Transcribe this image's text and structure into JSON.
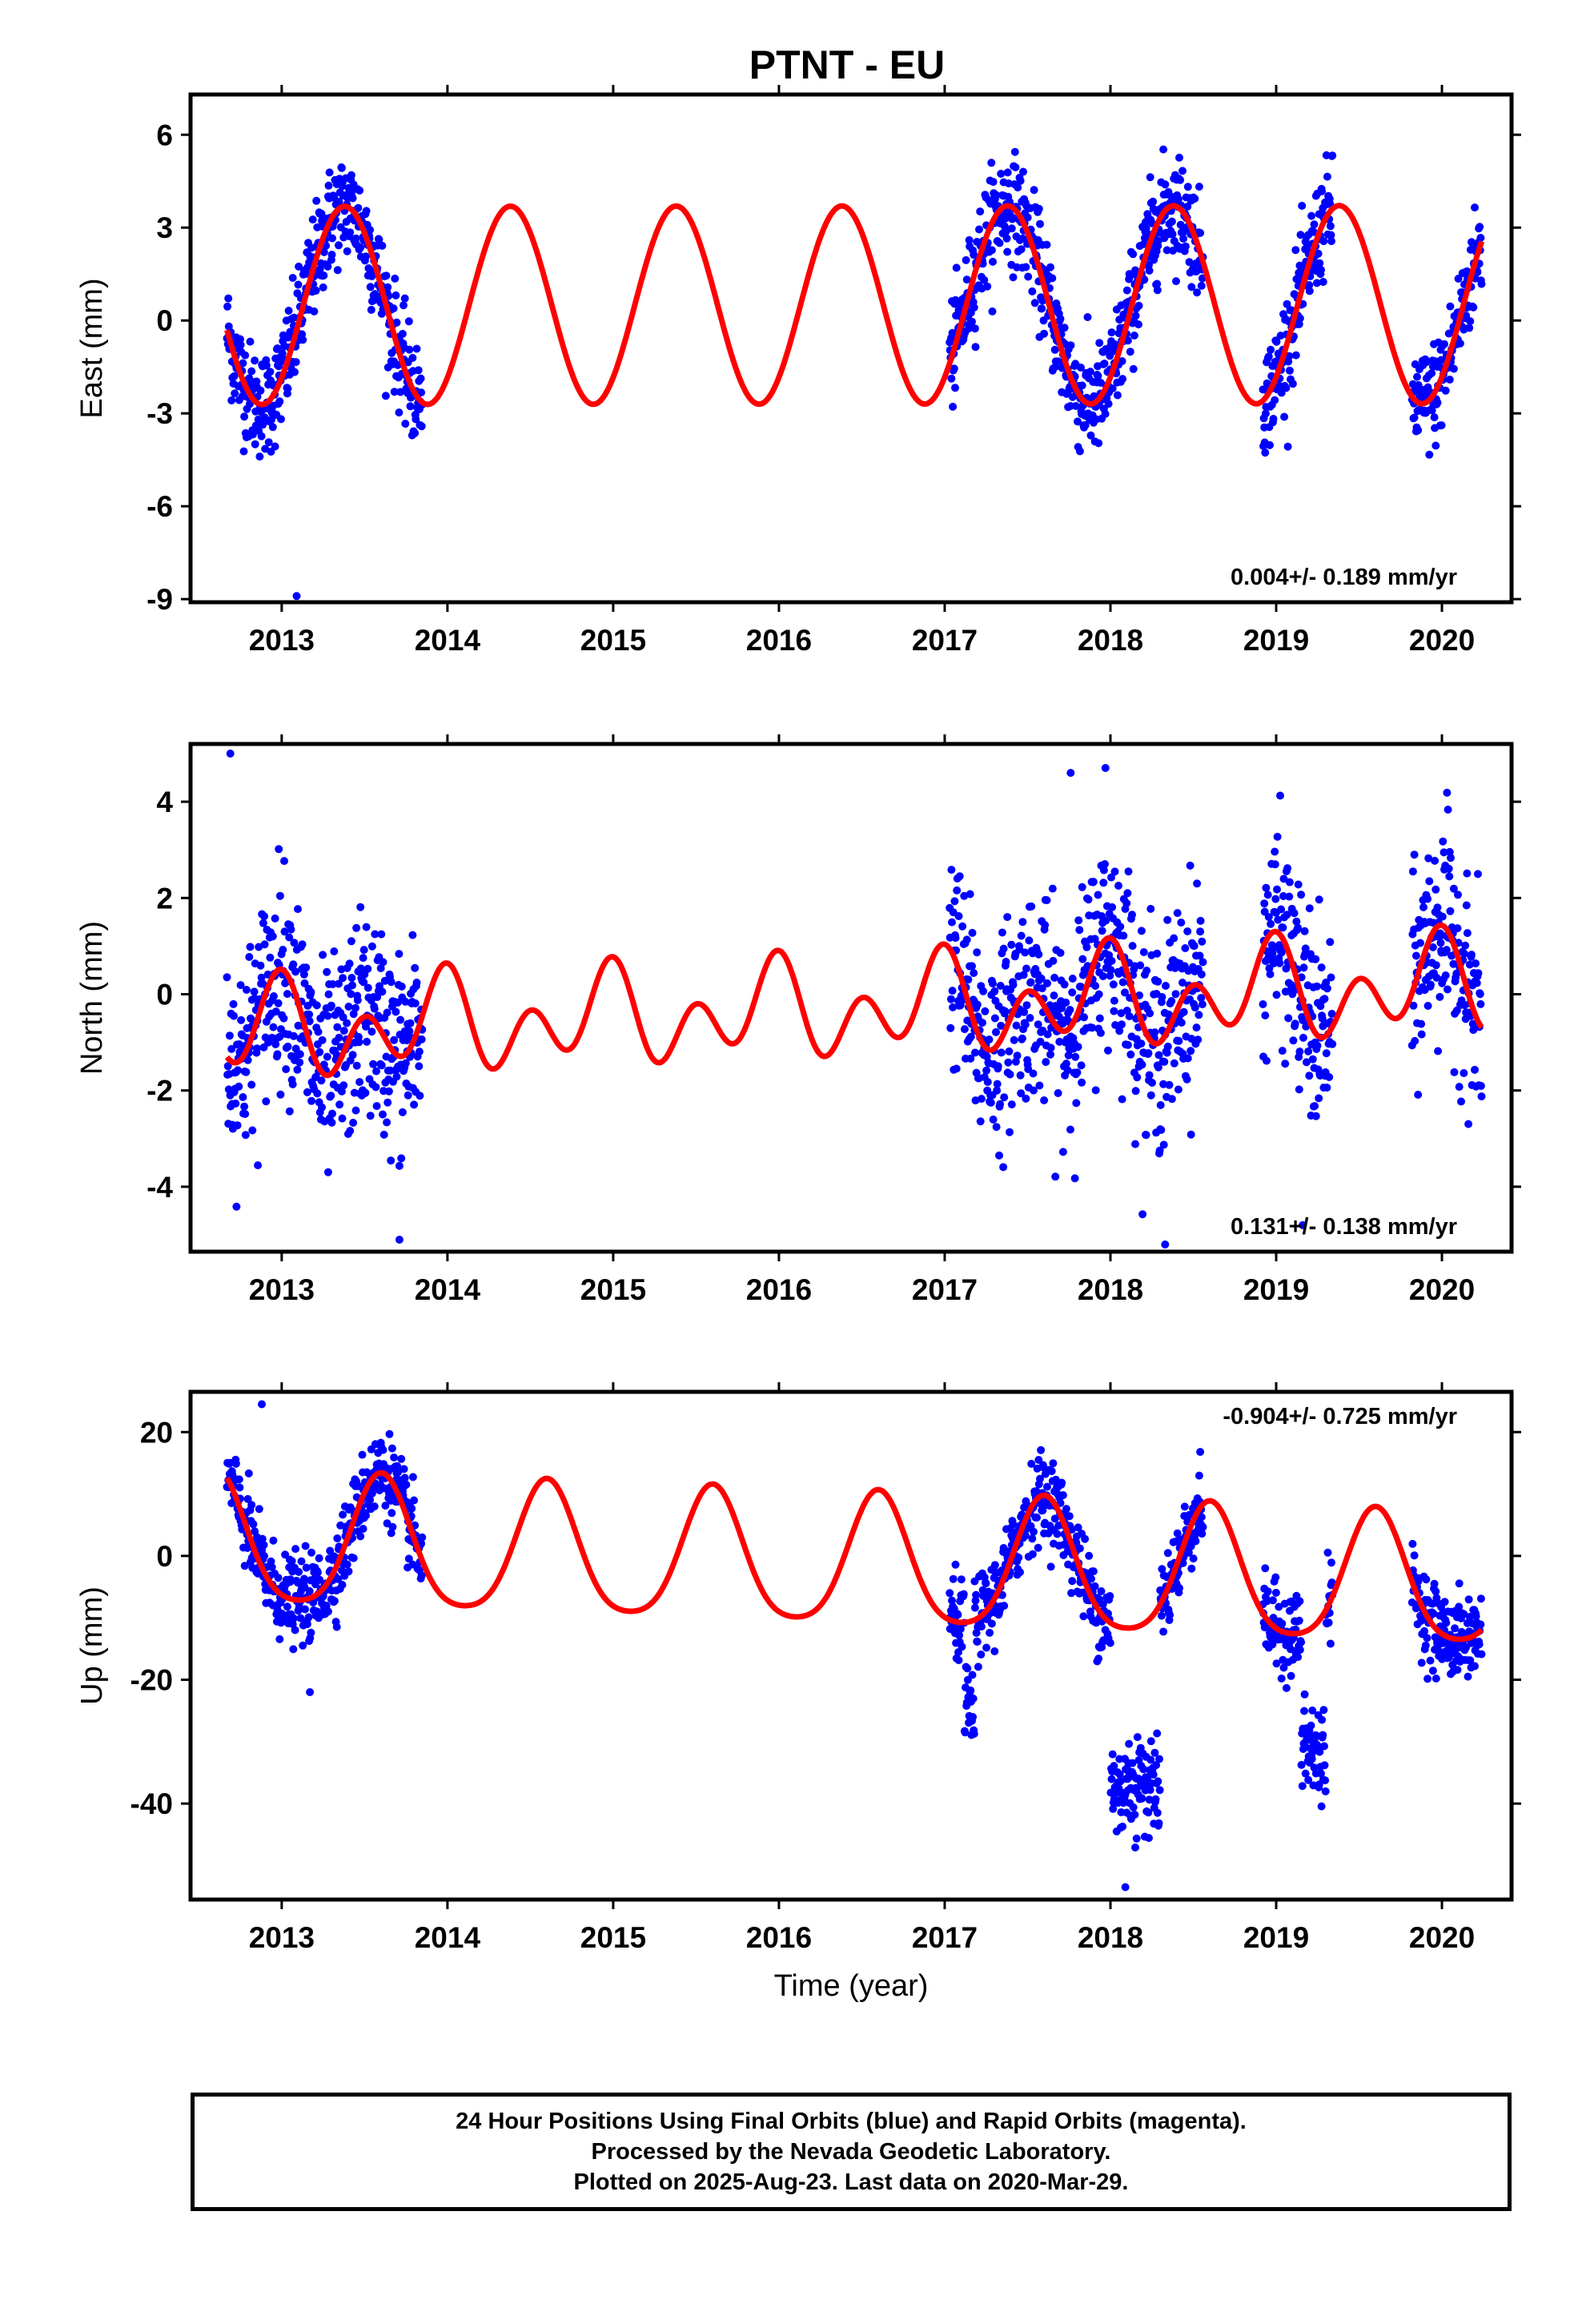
{
  "title": "PTNT - EU",
  "colors": {
    "final_orbits": "#0000ff",
    "model_fit": "#ff0000",
    "frame": "#000000"
  },
  "chart_data": [
    {
      "type": "scatter",
      "component": "east",
      "ylabel": "East (mm)",
      "xlabel": "",
      "xlim": [
        2012.45,
        2020.42
      ],
      "ylim": [
        -9.1,
        7.3
      ],
      "xticks": [
        2013,
        2014,
        2015,
        2016,
        2017,
        2018,
        2019,
        2020
      ],
      "xtick_labels": [
        "2013",
        "2014",
        "2015",
        "2016",
        "2017",
        "2018",
        "2019",
        "2020"
      ],
      "yticks": [
        -9,
        -6,
        -3,
        0,
        3,
        6
      ],
      "ytick_labels": [
        "-9",
        "-6",
        "-3",
        "0",
        "3",
        "6"
      ],
      "rate_text": "0.004+/- 0.189 mm/yr",
      "rate_position": "bottom-right",
      "data_spans": [
        [
          2012.67,
          2013.85
        ],
        [
          2017.03,
          2018.56
        ],
        [
          2018.92,
          2019.34
        ],
        [
          2019.82,
          2020.24
        ]
      ],
      "outliers": [
        [
          2013.09,
          -8.9
        ]
      ],
      "model": {
        "offset": 0.5,
        "trend": 0.004,
        "epoch": 2016.5,
        "annual": [
          {
            "amp": 3.2,
            "peak": 2013.38
          }
        ],
        "semiannual": [],
        "range": [
          2012.67,
          2020.24
        ]
      },
      "noise_sd": 0.85,
      "series": [
        {
          "name": "24 Hour Positions Using Final Orbits (blue)",
          "kind": "points"
        },
        {
          "name": "",
          "kind": "model-fit"
        }
      ]
    },
    {
      "type": "scatter",
      "component": "north",
      "ylabel": "North (mm)",
      "xlabel": "",
      "xlim": [
        2012.45,
        2020.42
      ],
      "ylim": [
        -5.35,
        5.2
      ],
      "xticks": [
        2013,
        2014,
        2015,
        2016,
        2017,
        2018,
        2019,
        2020
      ],
      "xtick_labels": [
        "2013",
        "2014",
        "2015",
        "2016",
        "2017",
        "2018",
        "2019",
        "2020"
      ],
      "yticks": [
        -4,
        -2,
        0,
        2,
        4
      ],
      "ytick_labels": [
        "-4",
        "-2",
        "0",
        "2",
        "4"
      ],
      "rate_text": "0.131+/- 0.138 mm/yr",
      "rate_position": "bottom-right",
      "data_spans": [
        [
          2012.67,
          2013.85
        ],
        [
          2017.03,
          2018.56
        ],
        [
          2018.92,
          2019.34
        ],
        [
          2019.82,
          2020.24
        ]
      ],
      "outliers": [
        [
          2012.69,
          5.0
        ],
        [
          2013.71,
          -5.1
        ],
        [
          2017.97,
          4.7
        ],
        [
          2017.76,
          4.6
        ],
        [
          2018.33,
          -5.2
        ],
        [
          2019.16,
          -4.8
        ]
      ],
      "model": {
        "offset": -0.3,
        "trend": 0.131,
        "epoch": 2016.5,
        "annual": [
          {
            "amp": 0.55,
            "peak": 2012.95
          }
        ],
        "semiannual": [
          {
            "amp": 0.75,
            "peak": 2013.0
          }
        ],
        "range": [
          2012.67,
          2020.24
        ]
      },
      "noise_sd": 1.05,
      "series": [
        {
          "name": "24 Hour Positions Using Final Orbits (blue)",
          "kind": "points"
        },
        {
          "name": "",
          "kind": "model-fit"
        }
      ]
    },
    {
      "type": "scatter",
      "component": "up",
      "ylabel": "Up (mm)",
      "xlabel": "Time (year)",
      "xlim": [
        2012.45,
        2020.42
      ],
      "ylim": [
        -55.5,
        26.5
      ],
      "xticks": [
        2013,
        2014,
        2015,
        2016,
        2017,
        2018,
        2019,
        2020
      ],
      "xtick_labels": [
        "2013",
        "2014",
        "2015",
        "2016",
        "2017",
        "2018",
        "2019",
        "2020"
      ],
      "yticks": [
        -40,
        -20,
        0,
        20
      ],
      "ytick_labels": [
        "-40",
        "-20",
        "0",
        "20"
      ],
      "rate_text": "-0.904+/- 0.725 mm/yr",
      "rate_position": "top-right",
      "data_spans": [
        [
          2012.67,
          2013.85
        ],
        [
          2017.03,
          2018.56
        ],
        [
          2018.92,
          2019.34
        ],
        [
          2019.82,
          2020.24
        ]
      ],
      "offset_spans": [
        [
          2018.0,
          2018.3,
          -37
        ],
        [
          2019.15,
          2019.3,
          -31
        ],
        [
          2017.12,
          2017.18,
          -25
        ]
      ],
      "outliers": [
        [
          2012.88,
          24.5
        ],
        [
          2013.17,
          -22.0
        ],
        [
          2018.09,
          -53.5
        ]
      ],
      "model": {
        "offset": -1.5,
        "trend": -0.904,
        "epoch": 2016.5,
        "annual": [
          {
            "amp": 10.5,
            "peak": 2013.6
          }
        ],
        "semiannual": [
          {
            "amp": 1.8,
            "peak": 2013.1
          }
        ],
        "range": [
          2012.67,
          2020.24
        ]
      },
      "noise_sd": 3.3,
      "series": [
        {
          "name": "24 Hour Positions Using Final Orbits (blue)",
          "kind": "points"
        },
        {
          "name": "",
          "kind": "model-fit"
        }
      ]
    }
  ],
  "footer": {
    "line1": "24 Hour Positions Using Final Orbits (blue) and Rapid Orbits (magenta).",
    "line2": "Processed by the Nevada Geodetic Laboratory.",
    "line3": "Plotted on 2025-Aug-23. Last data on 2020-Mar-29."
  }
}
